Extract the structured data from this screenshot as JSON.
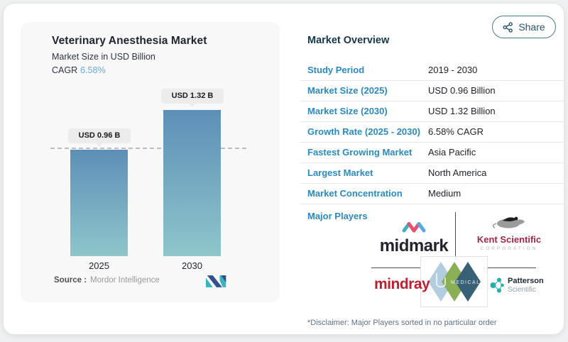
{
  "share": {
    "label": "Share"
  },
  "chart": {
    "title": "Veterinary Anesthesia Market",
    "subtitle": "Market Size in USD Billion",
    "cagr_label": "CAGR",
    "cagr_value": "6.58%",
    "source_label": "Source :",
    "source_value": "Mordor Intelligence"
  },
  "chart_data": {
    "type": "bar",
    "categories": [
      "2025",
      "2030"
    ],
    "values": [
      0.96,
      1.32
    ],
    "bar_labels": [
      "USD 0.96 B",
      "USD 1.32 B"
    ],
    "title": "Veterinary Anesthesia Market",
    "xlabel": "",
    "ylabel": "Market Size in USD Billion",
    "ylim": [
      0,
      1.5
    ],
    "reference_line": 0.96,
    "legend": "none",
    "grid": "off",
    "colors": {
      "bar_gradient_top": "#5d8fb7",
      "bar_gradient_bottom": "#8ec6cb",
      "dashed_line": "#bdbdbd"
    }
  },
  "overview": {
    "title": "Market Overview",
    "rows": [
      {
        "label": "Study Period",
        "value": "2019 - 2030"
      },
      {
        "label": "Market Size (2025)",
        "value": "USD 0.96 Billion"
      },
      {
        "label": "Market Size (2030)",
        "value": "USD 1.32 Billion"
      },
      {
        "label": "Growth Rate (2025 - 2030)",
        "value": "6.58% CAGR"
      },
      {
        "label": "Fastest Growing Market",
        "value": "Asia Pacific"
      },
      {
        "label": "Largest Market",
        "value": "North America"
      },
      {
        "label": "Market Concentration",
        "value": "Medium"
      }
    ],
    "major_players_label": "Major Players",
    "disclaimer": "*Disclaimer: Major Players sorted in no particular order"
  },
  "logos": {
    "midmark": {
      "wordmark": "midmark"
    },
    "kent": {
      "name": "Kent Scientific",
      "sub": "CORPORATION"
    },
    "mindray": {
      "wordmark": "mindray"
    },
    "jd": {
      "medical": "MEDICAL"
    },
    "patterson": {
      "name": "Patterson",
      "sub": "Scientific"
    }
  },
  "colors": {
    "accent_blue": "#2b8ac2",
    "heading_navy": "#14374e",
    "cagr_blue": "#69a9dc",
    "share_teal": "#24556e",
    "mindray_red": "#c01f2f",
    "kent_maroon": "#a12844",
    "midmark_teal": "#3fb1bd",
    "midmark_pink": "#e8506e",
    "midmark_blue": "#57a8e0",
    "jd_light_blue": "#aac7dd",
    "jd_green": "#7fa742",
    "jd_navy": "#234f68",
    "patterson_teal": "#23b0a8"
  }
}
